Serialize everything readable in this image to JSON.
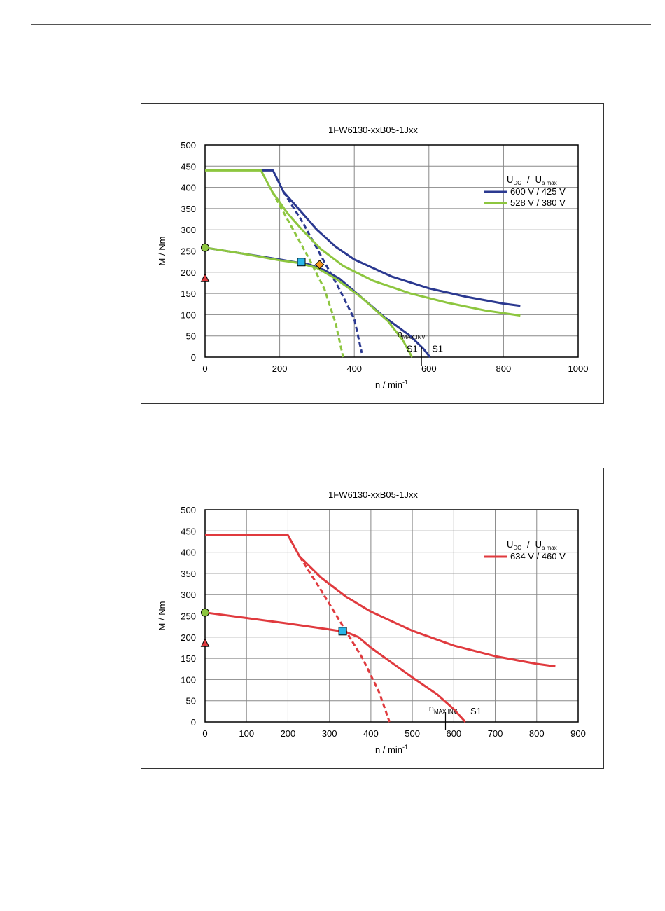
{
  "chart_data": [
    {
      "type": "line",
      "title": "1FW6130-xxB05-1Jxx",
      "ylabel": "M / Nm",
      "xlabel": "n / min",
      "xlabel_sup": "-1",
      "xlim": [
        0,
        1000
      ],
      "ylim": [
        0,
        500
      ],
      "xticks": [
        0,
        200,
        400,
        600,
        800,
        1000
      ],
      "yticks": [
        0,
        50,
        100,
        150,
        200,
        250,
        300,
        350,
        400,
        450,
        500
      ],
      "grid": true,
      "legend": {
        "placement": "top-right",
        "header": "U",
        "header_sub1": "DC",
        "header_sep": "/",
        "header_u2": "U",
        "header_sub2": "a max",
        "entries": [
          {
            "label": "600 V / 425 V",
            "color": "#2b3990"
          },
          {
            "label": "528 V / 380 V",
            "color": "#8dc63f"
          }
        ]
      },
      "series": [
        {
          "name": "600 V / 425 V",
          "color": "#2b3990",
          "style": "solid",
          "points": [
            [
              150,
              440
            ],
            [
              182,
              440
            ],
            [
              210,
              390
            ],
            [
              245,
              355
            ],
            [
              300,
              300
            ],
            [
              350,
              260
            ],
            [
              400,
              230
            ],
            [
              500,
              190
            ],
            [
              600,
              162
            ],
            [
              700,
              142
            ],
            [
              800,
              126
            ],
            [
              845,
              121
            ]
          ]
        },
        {
          "name": "600 V / 425 V",
          "color": "#2b3990",
          "style": "solid",
          "points": [
            [
              0,
              258
            ],
            [
              100,
              244
            ],
            [
              200,
              230
            ],
            [
              240,
              224
            ],
            [
              280,
              218
            ],
            [
              320,
              205
            ],
            [
              360,
              185
            ],
            [
              420,
              140
            ],
            [
              480,
              95
            ],
            [
              550,
              50
            ],
            [
              585,
              20
            ],
            [
              603,
              0
            ]
          ]
        },
        {
          "name": "600 V / 425 V",
          "color": "#2b3990",
          "style": "dashed",
          "points": [
            [
              210,
              390
            ],
            [
              260,
              320
            ],
            [
              310,
              240
            ],
            [
              360,
              160
            ],
            [
              400,
              90
            ],
            [
              420,
              10
            ]
          ]
        },
        {
          "name": "528 V / 380 V",
          "color": "#8dc63f",
          "style": "solid",
          "points": [
            [
              0,
              440
            ],
            [
              150,
              440
            ],
            [
              180,
              390
            ],
            [
              220,
              340
            ],
            [
              260,
              300
            ],
            [
              310,
              255
            ],
            [
              370,
              215
            ],
            [
              450,
              180
            ],
            [
              550,
              150
            ],
            [
              650,
              128
            ],
            [
              750,
              110
            ],
            [
              845,
              98
            ]
          ]
        },
        {
          "name": "528 V / 380 V",
          "color": "#8dc63f",
          "style": "solid",
          "points": [
            [
              0,
              258
            ],
            [
              100,
              244
            ],
            [
              200,
              228
            ],
            [
              250,
              222
            ],
            [
              300,
              210
            ],
            [
              350,
              185
            ],
            [
              420,
              140
            ],
            [
              490,
              85
            ],
            [
              530,
              40
            ],
            [
              555,
              0
            ]
          ]
        },
        {
          "name": "528 V / 380 V",
          "color": "#8dc63f",
          "style": "dashed",
          "points": [
            [
              180,
              390
            ],
            [
              230,
              310
            ],
            [
              280,
              230
            ],
            [
              320,
              160
            ],
            [
              350,
              80
            ],
            [
              370,
              0
            ]
          ]
        }
      ],
      "markers": [
        {
          "shape": "circle",
          "x": 0,
          "y": 258,
          "color": "#8dc63f"
        },
        {
          "shape": "triangle",
          "x": 0,
          "y": 186,
          "color": "#e03a3e"
        },
        {
          "shape": "square",
          "x": 258,
          "y": 224,
          "color": "#29b6e8"
        },
        {
          "shape": "diamond",
          "x": 307,
          "y": 218,
          "color": "#f7941d"
        }
      ],
      "annotations": [
        {
          "text": "n",
          "sub": "MAX,INV",
          "x": 515,
          "y": 48
        },
        {
          "text": "S1",
          "x": 540,
          "y": 12
        },
        {
          "text": "S1",
          "x": 608,
          "y": 12
        }
      ],
      "vline_label": {
        "x": 580
      }
    },
    {
      "type": "line",
      "title": "1FW6130-xxB05-1Jxx",
      "ylabel": "M / Nm",
      "xlabel": "n / min",
      "xlabel_sup": "-1",
      "xlim": [
        0,
        900
      ],
      "ylim": [
        0,
        500
      ],
      "xticks": [
        0,
        100,
        200,
        300,
        400,
        500,
        600,
        700,
        800,
        900
      ],
      "yticks": [
        0,
        50,
        100,
        150,
        200,
        250,
        300,
        350,
        400,
        450,
        500
      ],
      "grid": true,
      "legend": {
        "placement": "top-right",
        "header": "U",
        "header_sub1": "DC",
        "header_sep": "/",
        "header_u2": "U",
        "header_sub2": "a max",
        "entries": [
          {
            "label": "634 V / 460 V",
            "color": "#e03a3e"
          }
        ]
      },
      "series": [
        {
          "name": "634 V / 460 V",
          "color": "#e03a3e",
          "style": "solid",
          "points": [
            [
              0,
              440
            ],
            [
              200,
              440
            ],
            [
              228,
              390
            ],
            [
              280,
              340
            ],
            [
              340,
              295
            ],
            [
              400,
              260
            ],
            [
              500,
              215
            ],
            [
              600,
              180
            ],
            [
              700,
              155
            ],
            [
              800,
              137
            ],
            [
              845,
              131
            ]
          ]
        },
        {
          "name": "634 V / 460 V",
          "color": "#e03a3e",
          "style": "solid",
          "points": [
            [
              0,
              258
            ],
            [
              100,
              245
            ],
            [
              200,
              232
            ],
            [
              300,
              218
            ],
            [
              340,
              212
            ],
            [
              370,
              200
            ],
            [
              400,
              175
            ],
            [
              450,
              140
            ],
            [
              500,
              105
            ],
            [
              560,
              65
            ],
            [
              600,
              30
            ],
            [
              628,
              0
            ]
          ]
        },
        {
          "name": "634 V / 460 V",
          "color": "#e03a3e",
          "style": "dashed",
          "points": [
            [
              228,
              390
            ],
            [
              280,
              310
            ],
            [
              330,
              230
            ],
            [
              380,
              150
            ],
            [
              420,
              70
            ],
            [
              445,
              0
            ]
          ]
        }
      ],
      "markers": [
        {
          "shape": "circle",
          "x": 0,
          "y": 258,
          "color": "#8dc63f"
        },
        {
          "shape": "triangle",
          "x": 0,
          "y": 186,
          "color": "#e03a3e"
        },
        {
          "shape": "square",
          "x": 332,
          "y": 214,
          "color": "#29b6e8"
        }
      ],
      "annotations": [
        {
          "text": "n",
          "sub": "MAX,INV",
          "x": 540,
          "y": 25
        },
        {
          "text": "S1",
          "x": 640,
          "y": 18
        }
      ],
      "vline_label": {
        "x": 580
      }
    }
  ]
}
